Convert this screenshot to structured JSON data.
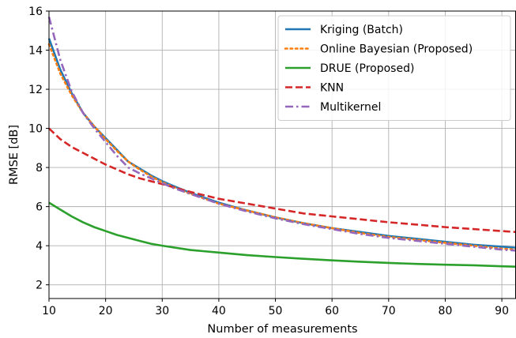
{
  "chart_data": {
    "type": "line",
    "title": "",
    "xlabel": "Number of measurements",
    "ylabel": "RMSE [dB]",
    "xlim": [
      10,
      92.5
    ],
    "ylim": [
      1.3,
      16
    ],
    "xticks": [
      10,
      20,
      30,
      40,
      50,
      60,
      70,
      80,
      90
    ],
    "yticks": [
      2,
      4,
      6,
      8,
      10,
      12,
      14,
      16
    ],
    "grid": true,
    "legend_position": "top-right",
    "series": [
      {
        "name": "Kriging (Batch)",
        "color": "#1f77b4",
        "style": "solid",
        "x": [
          10,
          12,
          14,
          16,
          18,
          20,
          22,
          24,
          26,
          28,
          30,
          32,
          35,
          40,
          45,
          50,
          55,
          60,
          65,
          70,
          75,
          80,
          85,
          90,
          92.5
        ],
        "y": [
          14.6,
          13.0,
          11.8,
          10.8,
          10.1,
          9.5,
          8.9,
          8.3,
          7.95,
          7.6,
          7.3,
          7.05,
          6.7,
          6.2,
          5.8,
          5.45,
          5.15,
          4.9,
          4.7,
          4.5,
          4.35,
          4.2,
          4.05,
          3.95,
          3.9
        ]
      },
      {
        "name": "Online Bayesian (Proposed)",
        "color": "#ff7f0e",
        "style": "dotted",
        "x": [
          10,
          12,
          14,
          16,
          18,
          20,
          22,
          24,
          26,
          28,
          30,
          32,
          35,
          40,
          45,
          50,
          55,
          60,
          65,
          70,
          75,
          80,
          85,
          90,
          92.5
        ],
        "y": [
          14.3,
          12.8,
          11.7,
          10.8,
          10.1,
          9.45,
          8.85,
          8.3,
          7.9,
          7.55,
          7.25,
          7.0,
          6.65,
          6.15,
          5.8,
          5.45,
          5.15,
          4.9,
          4.65,
          4.45,
          4.3,
          4.15,
          4.0,
          3.85,
          3.8
        ]
      },
      {
        "name": "DRUE (Proposed)",
        "color": "#2ca02c",
        "style": "solid",
        "x": [
          10,
          12,
          14,
          16,
          18,
          20,
          22,
          24,
          26,
          28,
          30,
          35,
          40,
          45,
          50,
          55,
          60,
          65,
          70,
          75,
          80,
          85,
          90,
          92.5
        ],
        "y": [
          6.2,
          5.85,
          5.5,
          5.2,
          4.95,
          4.75,
          4.55,
          4.4,
          4.25,
          4.1,
          4.0,
          3.78,
          3.65,
          3.52,
          3.42,
          3.33,
          3.25,
          3.18,
          3.12,
          3.07,
          3.03,
          3.0,
          2.95,
          2.93
        ]
      },
      {
        "name": "KNN",
        "color": "#d62728",
        "style": "dashed",
        "x": [
          10,
          12,
          14,
          16,
          18,
          20,
          22,
          24,
          26,
          28,
          30,
          35,
          40,
          45,
          50,
          55,
          60,
          65,
          70,
          75,
          80,
          85,
          90,
          92.5
        ],
        "y": [
          10.0,
          9.45,
          9.05,
          8.75,
          8.45,
          8.15,
          7.9,
          7.65,
          7.45,
          7.3,
          7.15,
          6.75,
          6.4,
          6.15,
          5.9,
          5.65,
          5.5,
          5.35,
          5.2,
          5.08,
          4.95,
          4.85,
          4.75,
          4.7
        ]
      },
      {
        "name": "Multikernel",
        "color": "#9467bd",
        "style": "dashdot",
        "x": [
          10,
          11,
          12,
          14,
          16,
          18,
          20,
          22,
          24,
          26,
          28,
          30,
          32,
          35,
          40,
          45,
          50,
          55,
          60,
          65,
          70,
          75,
          80,
          85,
          90,
          92.5
        ],
        "y": [
          15.7,
          14.6,
          13.5,
          11.9,
          10.8,
          10.0,
          9.3,
          8.6,
          8.0,
          7.7,
          7.45,
          7.2,
          6.95,
          6.65,
          6.15,
          5.75,
          5.4,
          5.1,
          4.85,
          4.6,
          4.4,
          4.25,
          4.1,
          3.95,
          3.8,
          3.75
        ]
      }
    ]
  }
}
